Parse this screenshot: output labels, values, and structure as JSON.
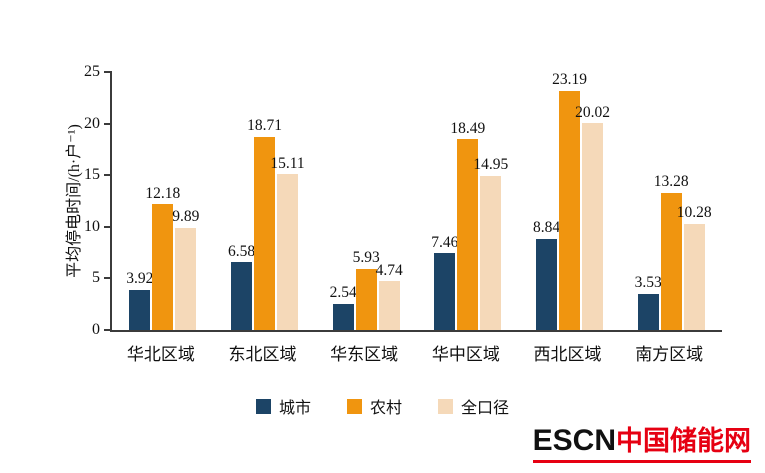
{
  "chart_data": {
    "type": "bar",
    "categories": [
      "华北区域",
      "东北区域",
      "华东区域",
      "华中区域",
      "西北区域",
      "南方区域"
    ],
    "series": [
      {
        "name": "城市",
        "color": "#1c4466",
        "values": [
          3.92,
          6.58,
          2.54,
          7.46,
          8.84,
          3.53
        ]
      },
      {
        "name": "农村",
        "color": "#f0950f",
        "values": [
          12.18,
          18.71,
          5.93,
          18.49,
          23.19,
          13.28
        ]
      },
      {
        "name": "全口径",
        "color": "#f5d9b9",
        "values": [
          9.89,
          15.11,
          4.74,
          14.95,
          20.02,
          10.28
        ]
      }
    ],
    "title": "",
    "xlabel": "",
    "ylabel": "平均停电时间/(h·户⁻¹)",
    "ylim": [
      0,
      25
    ],
    "yticks": [
      0,
      5,
      10,
      15,
      20,
      25
    ],
    "grid": false,
    "legend_position": "bottom"
  },
  "branding": {
    "escn": "ESCN",
    "site_name": "中国储能网"
  }
}
